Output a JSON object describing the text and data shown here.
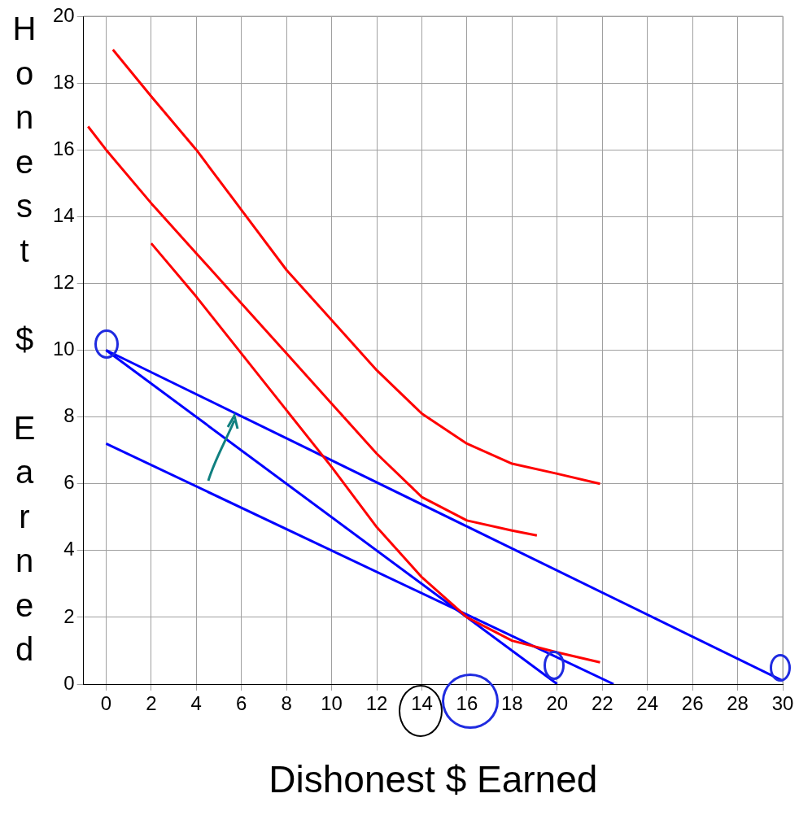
{
  "chart_data": {
    "type": "line",
    "xlabel": "Dishonest $ Earned",
    "ylabel": "Honest $ Earned",
    "xlim": [
      -1,
      30
    ],
    "ylim": [
      0,
      20
    ],
    "xticks": [
      0,
      2,
      4,
      6,
      8,
      10,
      12,
      14,
      16,
      18,
      20,
      22,
      24,
      26,
      28,
      30
    ],
    "yticks": [
      0,
      2,
      4,
      6,
      8,
      10,
      12,
      14,
      16,
      18,
      20
    ],
    "grid": true,
    "legend": false,
    "marker": "none",
    "line_style": "solid",
    "series": [
      {
        "color": "#ff0000",
        "x": [
          0.3,
          2,
          4,
          6,
          8,
          10,
          12,
          14,
          16,
          18,
          20,
          21.9
        ],
        "values": [
          19,
          17.6,
          16,
          14.2,
          12.4,
          10.9,
          9.4,
          8.1,
          7.2,
          6.6,
          6.3,
          6
        ]
      },
      {
        "color": "#ff0000",
        "x": [
          -0.8,
          0,
          2,
          4,
          6,
          8,
          10,
          12,
          14,
          16,
          18,
          19.1
        ],
        "values": [
          16.7,
          16,
          14.4,
          12.9,
          11.4,
          9.9,
          8.4,
          6.9,
          5.6,
          4.9,
          4.6,
          4.45
        ]
      },
      {
        "color": "#ff0000",
        "x": [
          2,
          4,
          6,
          8,
          10,
          12,
          14,
          16,
          18,
          20,
          21.9
        ],
        "values": [
          13.2,
          11.6,
          9.9,
          8.2,
          6.5,
          4.7,
          3.2,
          2,
          1.3,
          0.95,
          0.65
        ]
      },
      {
        "color": "#0000ff",
        "x": [
          0,
          30
        ],
        "values": [
          10,
          0.1
        ]
      },
      {
        "color": "#0000ff",
        "x": [
          0,
          20
        ],
        "values": [
          10,
          0
        ]
      },
      {
        "color": "#0000ff",
        "x": [
          0,
          22.5
        ],
        "values": [
          7.2,
          0
        ]
      }
    ]
  }
}
